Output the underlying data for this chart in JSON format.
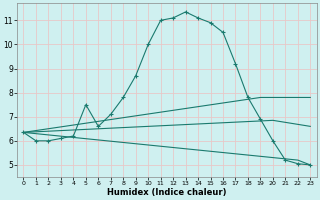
{
  "xlabel": "Humidex (Indice chaleur)",
  "x_ticks": [
    0,
    1,
    2,
    3,
    4,
    5,
    6,
    7,
    8,
    9,
    10,
    11,
    12,
    13,
    14,
    15,
    16,
    17,
    18,
    19,
    20,
    21,
    22,
    23
  ],
  "ylim": [
    4.5,
    11.7
  ],
  "yticks": [
    5,
    6,
    7,
    8,
    9,
    10,
    11
  ],
  "bg_color": "#cff0f0",
  "grid_color": "#e8c8c8",
  "line_color": "#1a7a6e",
  "line1_x": [
    0,
    1,
    2,
    3,
    4,
    5,
    6,
    7,
    8,
    9,
    10,
    11,
    12,
    13,
    14,
    15,
    16,
    17,
    18,
    19,
    20,
    21,
    22,
    23
  ],
  "line1_y": [
    6.35,
    6.0,
    6.0,
    6.1,
    6.2,
    7.5,
    6.6,
    7.1,
    7.8,
    8.7,
    10.0,
    11.0,
    11.1,
    11.35,
    11.1,
    10.9,
    10.5,
    9.2,
    7.8,
    6.9,
    6.0,
    5.2,
    5.05,
    5.0
  ],
  "line2_x": [
    0,
    19,
    23
  ],
  "line2_y": [
    6.35,
    7.8,
    7.8
  ],
  "line3_x": [
    0,
    20,
    23
  ],
  "line3_y": [
    6.35,
    6.85,
    6.6
  ],
  "line4_x": [
    0,
    22,
    23
  ],
  "line4_y": [
    6.35,
    5.2,
    5.0
  ]
}
